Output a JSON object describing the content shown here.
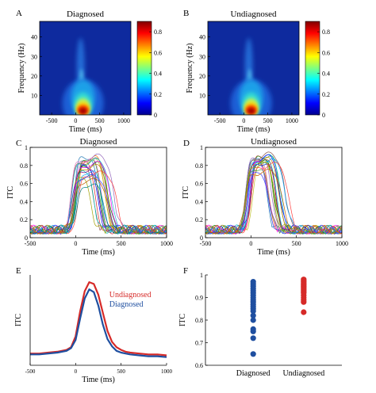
{
  "chart_data": [
    {
      "panel": "A",
      "type": "heatmap",
      "title": "Diagnosed",
      "xlabel": "Time (ms)",
      "ylabel": "Frequency (Hz)",
      "xlim": [
        -750,
        1150
      ],
      "ylim": [
        0,
        48
      ],
      "xticks": [
        -500,
        0,
        500,
        1000
      ],
      "yticks": [
        10,
        20,
        30,
        40
      ],
      "colorbar": {
        "ticks": [
          0,
          0.2,
          0.4,
          0.6,
          0.8
        ],
        "range": [
          0,
          0.9
        ]
      },
      "peak": {
        "x": 120,
        "y": 3,
        "value": 0.9
      }
    },
    {
      "panel": "B",
      "type": "heatmap",
      "title": "Undiagnosed",
      "xlabel": "Time (ms)",
      "ylabel": "Frequency (Hz)",
      "xlim": [
        -750,
        1150
      ],
      "ylim": [
        0,
        48
      ],
      "xticks": [
        -500,
        0,
        500,
        1000
      ],
      "yticks": [
        10,
        20,
        30,
        40
      ],
      "colorbar": {
        "ticks": [
          0,
          0.2,
          0.4,
          0.6,
          0.8
        ],
        "range": [
          0,
          0.9
        ]
      },
      "peak": {
        "x": 120,
        "y": 3,
        "value": 0.92
      }
    },
    {
      "panel": "C",
      "type": "line",
      "title": "Diagnosed",
      "xlabel": "Time (ms)",
      "ylabel": "ITC",
      "xlim": [
        -500,
        1000
      ],
      "ylim": [
        0,
        1
      ],
      "xticks": [
        -500,
        0,
        500,
        1000
      ],
      "yticks": [
        0,
        0.2,
        0.4,
        0.6,
        0.8,
        1
      ],
      "peaks": [
        0.97,
        0.96,
        0.95,
        0.94,
        0.93,
        0.92,
        0.91,
        0.9,
        0.89,
        0.88,
        0.87,
        0.86,
        0.85,
        0.84,
        0.82,
        0.8,
        0.78,
        0.76,
        0.74,
        0.72,
        0.7,
        0.66,
        0.62
      ]
    },
    {
      "panel": "D",
      "type": "line",
      "title": "Undiagnosed",
      "xlabel": "Time (ms)",
      "ylabel": "ITC",
      "xlim": [
        -500,
        1000
      ],
      "ylim": [
        0,
        1
      ],
      "xticks": [
        -500,
        0,
        500,
        1000
      ],
      "yticks": [
        0,
        0.2,
        0.4,
        0.6,
        0.8,
        1
      ],
      "peaks": [
        0.98,
        0.97,
        0.97,
        0.96,
        0.96,
        0.95,
        0.95,
        0.94,
        0.94,
        0.93,
        0.93,
        0.92,
        0.92,
        0.91,
        0.9,
        0.89,
        0.88,
        0.86,
        0.84,
        0.82,
        0.8,
        0.76
      ]
    },
    {
      "panel": "E",
      "type": "line",
      "title": "",
      "xlabel": "Time (ms)",
      "ylabel": "ITC",
      "xlim": [
        -500,
        1000
      ],
      "ylim": [
        0,
        1
      ],
      "xticks": [
        -500,
        0,
        500,
        1000
      ],
      "x": [
        -500,
        -400,
        -300,
        -200,
        -100,
        -50,
        0,
        50,
        100,
        150,
        200,
        250,
        300,
        350,
        400,
        450,
        500,
        550,
        600,
        700,
        800,
        900,
        1000
      ],
      "series": [
        {
          "name": "Undiagnosed",
          "color": "#d62a28",
          "values": [
            0.13,
            0.13,
            0.14,
            0.15,
            0.17,
            0.2,
            0.32,
            0.6,
            0.82,
            0.92,
            0.9,
            0.78,
            0.58,
            0.38,
            0.26,
            0.2,
            0.17,
            0.15,
            0.14,
            0.13,
            0.12,
            0.12,
            0.11
          ]
        },
        {
          "name": "Diagnosed",
          "color": "#1f4fa0",
          "values": [
            0.12,
            0.12,
            0.13,
            0.14,
            0.16,
            0.19,
            0.28,
            0.52,
            0.74,
            0.84,
            0.81,
            0.66,
            0.45,
            0.29,
            0.21,
            0.16,
            0.14,
            0.13,
            0.12,
            0.11,
            0.1,
            0.1,
            0.09
          ]
        }
      ]
    },
    {
      "panel": "F",
      "type": "scatter",
      "title": "",
      "ylabel": "ITC",
      "ylim": [
        0.6,
        1
      ],
      "yticks": [
        0.6,
        0.7,
        0.8,
        0.9,
        1
      ],
      "categories": [
        "Diagnosed",
        "Undiagnosed"
      ],
      "series": [
        {
          "name": "Diagnosed",
          "color": "#1f4fa0",
          "values": [
            0.97,
            0.96,
            0.95,
            0.94,
            0.93,
            0.92,
            0.91,
            0.9,
            0.89,
            0.88,
            0.87,
            0.86,
            0.85,
            0.84,
            0.82,
            0.8,
            0.76,
            0.75,
            0.72,
            0.65
          ]
        },
        {
          "name": "Undiagnosed",
          "color": "#d62a28",
          "values": [
            0.98,
            0.975,
            0.97,
            0.965,
            0.96,
            0.955,
            0.95,
            0.945,
            0.94,
            0.935,
            0.93,
            0.925,
            0.92,
            0.91,
            0.9,
            0.89,
            0.88,
            0.835
          ]
        }
      ]
    }
  ]
}
